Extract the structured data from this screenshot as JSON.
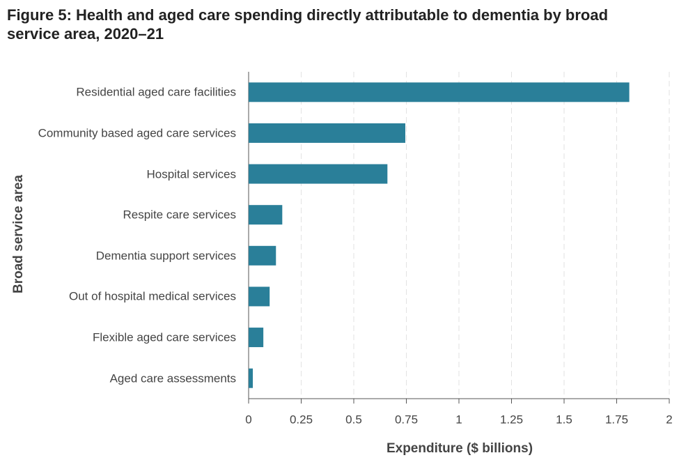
{
  "chart_data": {
    "type": "barh",
    "title": "Figure 5: Health and aged care spending directly attributable to dementia by broad service area, 2020–21",
    "x_label": "Expenditure ($ billions)",
    "y_label": "Broad service area",
    "categories": [
      "Residential aged care facilities",
      "Community based aged care services",
      "Hospital services",
      "Respite care services",
      "Dementia support services",
      "Out of hospital medical services",
      "Flexible aged care services",
      "Aged care assessments"
    ],
    "values": [
      1.81,
      0.745,
      0.66,
      0.16,
      0.13,
      0.1,
      0.07,
      0.02
    ],
    "color": "#2a7f99",
    "xlim": [
      0,
      2
    ],
    "xticks": [
      0,
      0.25,
      0.5,
      0.75,
      1,
      1.25,
      1.5,
      1.75,
      2
    ],
    "grid": true
  }
}
